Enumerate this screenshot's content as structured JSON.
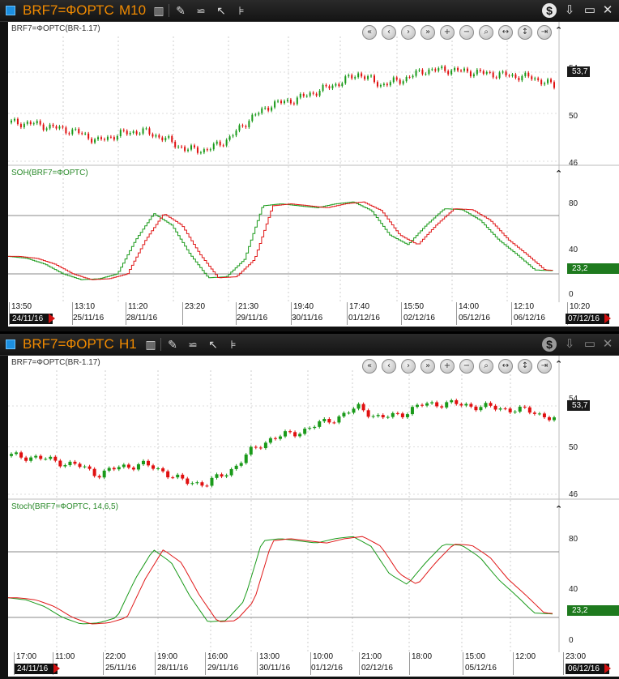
{
  "windows": [
    {
      "title": "BRF7=ФОРТС",
      "timeframe": "M10",
      "instrument_label": "BRF7=ФОРТС(BR-1.17)",
      "indicator_label": "SOH(BRF7=ФОРТС)",
      "price_last": "53,7",
      "stoch_last": "23,2",
      "price_ticks": [
        "54",
        "50",
        "46"
      ],
      "stoch_ticks": [
        "80",
        "40",
        "0"
      ],
      "x_times": [
        "13:50",
        "13:10",
        "11:20",
        "23:20",
        "21:30",
        "19:40",
        "17:40",
        "15:50",
        "14:00",
        "12:10",
        "10:20"
      ],
      "x_dates": [
        "24/11/16",
        "25/11/16",
        "28/11/16",
        "29/11/16",
        "30/11/16",
        "01/12/16",
        "02/12/16",
        "05/12/16",
        "06/12/16",
        "07/12/16"
      ],
      "style": "steps"
    },
    {
      "title": "BRF7=ФОРТС",
      "timeframe": "H1",
      "instrument_label": "BRF7=ФОРТС(BR-1.17)",
      "indicator_label": "Stoch(BRF7=ФОРТС, 14,6,5)",
      "price_last": "53,7",
      "stoch_last": "23,2",
      "price_ticks": [
        "54",
        "50",
        "46"
      ],
      "stoch_ticks": [
        "80",
        "40",
        "0"
      ],
      "x_times": [
        "17:00",
        "11:00",
        "22:00",
        "19:00",
        "16:00",
        "13:00",
        "10:00",
        "21:00",
        "18:00",
        "15:00",
        "12:00",
        "23:00"
      ],
      "x_dates": [
        "24/11/16",
        "25/11/16",
        "28/11/16",
        "29/11/16",
        "30/11/16",
        "01/12/16",
        "02/12/16",
        "05/12/16",
        "06/12/16"
      ],
      "style": "smooth"
    }
  ],
  "icons": {
    "toolbar": [
      "candles-icon",
      "pencil-icon",
      "trend-icon",
      "cursor-icon",
      "levels-icon"
    ],
    "nav": [
      "rewind-icon",
      "back-icon",
      "forward-icon",
      "fast-forward-icon",
      "zoom-in-icon",
      "zoom-out-icon",
      "zoom-fit-icon",
      "expand-icon",
      "compress-icon",
      "end-icon"
    ],
    "window": [
      "dollar-icon",
      "download-icon",
      "minimize-icon",
      "close-icon"
    ]
  },
  "colors": {
    "accent": "#f08a00",
    "up": "#1a9a1a",
    "down": "#e01010",
    "k_line": "#1a9a1a",
    "d_line": "#e01818"
  },
  "chart_data": [
    {
      "type": "candlestick",
      "series": [
        {
          "name": "BRF7=ФОРТС(BR-1.17)",
          "values": [
            50.1,
            50.0,
            49.6,
            49.2,
            48.3,
            49.0,
            49.3,
            48.6,
            47.5,
            47.4,
            48.5,
            50.5,
            51.9,
            52.3,
            53.1,
            53.9,
            54.9,
            53.8,
            54.3,
            55.2,
            55.3,
            55.1,
            54.9,
            54.7,
            54.5,
            53.7
          ]
        }
      ],
      "ylim": [
        46,
        56
      ]
    },
    {
      "type": "line",
      "series": [
        {
          "values": [
            38,
            36,
            30,
            20,
            14,
            15,
            20,
            55,
            82,
            70,
            40,
            16,
            17,
            35,
            90,
            92,
            90,
            88,
            92,
            94,
            85,
            60,
            50,
            70,
            87,
            86,
            75,
            55,
            40,
            24,
            23.2
          ]
        }
      ],
      "ylim": [
        0,
        100
      ]
    },
    {
      "type": "candlestick",
      "series": [
        {
          "name": "BRF7=ФОРТС(BR-1.17)",
          "values": [
            50.1,
            50.0,
            49.6,
            49.2,
            48.3,
            49.0,
            49.3,
            48.6,
            47.5,
            47.4,
            48.5,
            50.5,
            51.9,
            52.3,
            53.1,
            53.9,
            54.9,
            53.8,
            54.3,
            55.2,
            55.3,
            55.1,
            54.9,
            54.7,
            54.5,
            53.7
          ]
        }
      ],
      "ylim": [
        46,
        56
      ]
    },
    {
      "type": "line",
      "series": [
        {
          "values": [
            38,
            36,
            30,
            20,
            14,
            15,
            20,
            55,
            82,
            70,
            40,
            16,
            17,
            35,
            90,
            92,
            90,
            88,
            92,
            94,
            85,
            60,
            50,
            70,
            87,
            86,
            75,
            55,
            40,
            24,
            23.2
          ]
        }
      ],
      "ylim": [
        0,
        100
      ]
    }
  ]
}
